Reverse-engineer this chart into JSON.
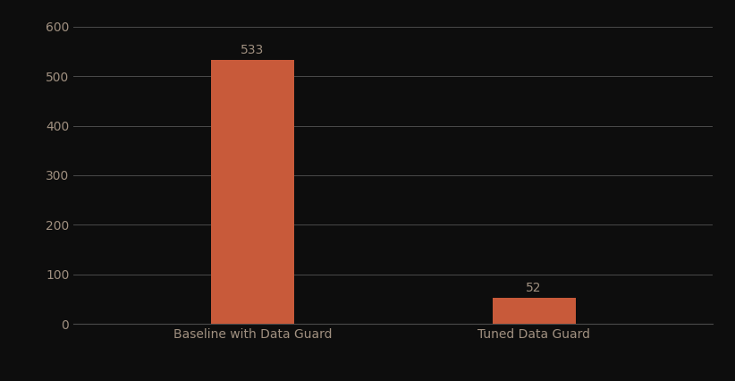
{
  "categories": [
    "Baseline with Data Guard",
    "Tuned Data Guard"
  ],
  "values": [
    533,
    52
  ],
  "bar_color": "#c85a3a",
  "background_color": "#0d0d0d",
  "text_color": "#a09080",
  "grid_color": "#4a4a4a",
  "ylim": [
    0,
    600
  ],
  "yticks": [
    0,
    100,
    200,
    300,
    400,
    500,
    600
  ],
  "bar_width": 0.13,
  "label_fontsize": 10,
  "tick_fontsize": 10,
  "annotation_fontsize": 10,
  "x_positions": [
    0.28,
    0.72
  ]
}
